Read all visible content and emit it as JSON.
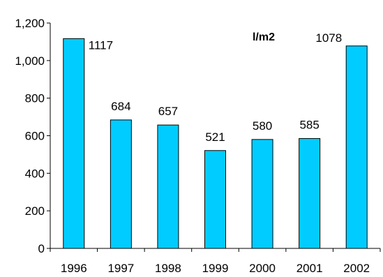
{
  "chart_data": {
    "type": "bar",
    "title": "l/m2",
    "categories": [
      "1996",
      "1997",
      "1998",
      "1999",
      "2000",
      "2001",
      "2002"
    ],
    "values": [
      1117,
      684,
      657,
      521,
      580,
      585,
      1078
    ],
    "data_labels": [
      "1117",
      "684",
      "657",
      "521",
      "580",
      "585",
      "1078"
    ],
    "y_ticks": [
      "0",
      "200",
      "400",
      "600",
      "800",
      "1,000",
      "1,200"
    ],
    "y_tick_values": [
      0,
      200,
      400,
      600,
      800,
      1000,
      1200
    ],
    "ylim": [
      0,
      1200
    ],
    "xlabel": "",
    "ylabel": "",
    "grid": false,
    "bar_color": "#00ccff",
    "bar_edge_color": "#000000"
  }
}
